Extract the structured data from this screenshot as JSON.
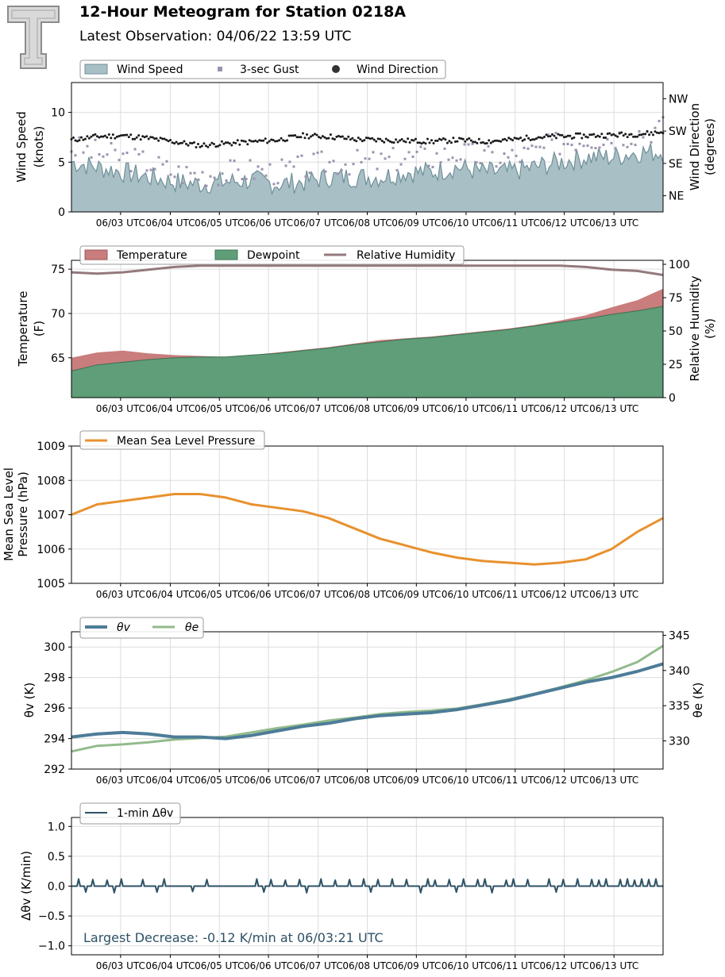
{
  "header": {
    "title": "12-Hour Meteogram for Station 0218A",
    "subtitle": "Latest Observation: 04/06/22 13:59 UTC"
  },
  "x_tick_labels": [
    "06/03 UTC",
    "06/04 UTC",
    "06/05 UTC",
    "06/06 UTC",
    "06/07 UTC",
    "06/08 UTC",
    "06/09 UTC",
    "06/10 UTC",
    "06/11 UTC",
    "06/12 UTC",
    "06/13 UTC"
  ],
  "colors": {
    "wind_fill": "#a9bfc6",
    "wind_line": "#6f8f98",
    "gust": "#9a93ae",
    "direction": "#1a1a1a",
    "temperature": "#c97d7d",
    "dewpoint": "#5f9e78",
    "rh": "#94797c",
    "pressure": "#e8912e",
    "theta_v": "#4d7c98",
    "theta_e": "#92bb8c",
    "dtheta": "#2d5266"
  },
  "chart_data": [
    {
      "type": "area",
      "legend": [
        "Wind Speed",
        "3-sec Gust",
        "Wind Direction"
      ],
      "ylabel_lines": [
        "Wind Speed",
        "(knots)"
      ],
      "ylim": [
        0,
        13
      ],
      "yticks": [
        0,
        5,
        10
      ],
      "y2label_lines": [
        "Wind Direction",
        "(degrees)"
      ],
      "y2ticks": [
        "NE",
        "SE",
        "SW",
        "NW"
      ],
      "y2_tick_degrees": [
        45,
        135,
        225,
        315
      ],
      "y2lim": [
        0,
        360
      ],
      "wind_speed_knots": [
        5.0,
        4.5,
        4.0,
        3.5,
        3.0,
        2.8,
        3.0,
        3.2,
        2.8,
        3.0,
        3.5,
        3.5,
        3.5,
        4.0,
        4.0,
        4.5,
        4.0,
        4.0,
        4.5,
        5.0,
        5.5,
        5.5,
        6.0,
        6.0
      ],
      "gust_knots": [
        6.5,
        6.0,
        5.5,
        5.0,
        4.0,
        3.8,
        4.0,
        4.2,
        4.0,
        4.5,
        5.0,
        5.0,
        5.0,
        5.5,
        5.5,
        6.0,
        5.5,
        5.5,
        6.0,
        7.0,
        7.5,
        7.5,
        8.0,
        8.5
      ],
      "direction_degrees": [
        200,
        210,
        212,
        205,
        195,
        185,
        190,
        195,
        200,
        212,
        210,
        202,
        200,
        198,
        196,
        200,
        196,
        200,
        208,
        210,
        212,
        214,
        216,
        222
      ]
    },
    {
      "type": "area",
      "legend": [
        "Temperature",
        "Dewpoint",
        "Relative Humidity"
      ],
      "ylabel_lines": [
        "Temperature",
        "(F)"
      ],
      "ylim": [
        60.5,
        76
      ],
      "yticks": [
        65,
        70,
        75
      ],
      "y2label_lines": [
        "Relative Humidity",
        "(%)"
      ],
      "y2lim": [
        0,
        103
      ],
      "y2ticks": [
        0,
        25,
        50,
        75,
        100
      ],
      "temperature_f": [
        65.0,
        65.6,
        65.8,
        65.5,
        65.3,
        65.2,
        65.1,
        65.3,
        65.6,
        65.9,
        66.2,
        66.6,
        67.0,
        67.2,
        67.4,
        67.7,
        68.0,
        68.3,
        68.7,
        69.2,
        69.8,
        70.7,
        71.5,
        72.8
      ],
      "dewpoint_f": [
        63.5,
        64.2,
        64.5,
        64.8,
        65.0,
        65.1,
        65.1,
        65.3,
        65.5,
        65.8,
        66.1,
        66.5,
        66.8,
        67.1,
        67.3,
        67.6,
        67.9,
        68.2,
        68.6,
        69.0,
        69.4,
        69.9,
        70.3,
        70.8
      ],
      "rh_percent": [
        94,
        93,
        94,
        96,
        98,
        99,
        99,
        99,
        99,
        99,
        99,
        99,
        99,
        99,
        99,
        99,
        99,
        99,
        99,
        99,
        98,
        96,
        95,
        92
      ]
    },
    {
      "type": "line",
      "legend": [
        "Mean Sea Level Pressure"
      ],
      "ylabel_lines": [
        "Mean Sea Level",
        "Pressure (hPa)"
      ],
      "ylim": [
        1005,
        1009
      ],
      "yticks": [
        1005,
        1006,
        1007,
        1008,
        1009
      ],
      "pressure_hpa": [
        1007.0,
        1007.3,
        1007.4,
        1007.5,
        1007.6,
        1007.6,
        1007.5,
        1007.3,
        1007.2,
        1007.1,
        1006.9,
        1006.6,
        1006.3,
        1006.1,
        1005.9,
        1005.75,
        1005.65,
        1005.6,
        1005.55,
        1005.6,
        1005.7,
        1006.0,
        1006.5,
        1006.9
      ]
    },
    {
      "type": "line",
      "legend": [
        "θv",
        "θe"
      ],
      "ylabel": "θv (K)",
      "ylim": [
        292,
        301
      ],
      "yticks": [
        292,
        294,
        296,
        298,
        300
      ],
      "y2label": "θe (K)",
      "y2lim": [
        326,
        345.5
      ],
      "y2ticks": [
        330,
        335,
        340,
        345
      ],
      "theta_v_k": [
        294.1,
        294.3,
        294.4,
        294.3,
        294.1,
        294.1,
        294.0,
        294.2,
        294.5,
        294.8,
        295.0,
        295.3,
        295.5,
        295.6,
        295.7,
        295.9,
        296.2,
        296.5,
        296.9,
        297.3,
        297.7,
        298.0,
        298.4,
        298.9
      ],
      "theta_e_k": [
        328.5,
        329.3,
        329.5,
        329.8,
        330.2,
        330.4,
        330.6,
        331.2,
        331.8,
        332.3,
        332.9,
        333.3,
        333.8,
        334.1,
        334.3,
        334.6,
        335.2,
        335.9,
        336.7,
        337.6,
        338.6,
        339.8,
        341.2,
        343.5
      ]
    },
    {
      "type": "line",
      "legend": [
        "1-min Δθv"
      ],
      "ylabel": "Δθv (K/min)",
      "ylim": [
        -1.15,
        1.15
      ],
      "yticks": [
        "−1.0",
        "−0.5",
        "0.0",
        "0.5",
        "1.0"
      ],
      "ytick_values": [
        -1.0,
        -0.5,
        0.0,
        0.5,
        1.0
      ],
      "annotation": "Largest Decrease: -0.12 K/min at 06/03:21 UTC",
      "dtheta_v_k_per_min": [
        0.0,
        0.12,
        -0.1,
        0.11,
        0.0,
        0.1,
        -0.11,
        0.12,
        0.0,
        0.0,
        0.11,
        0.0,
        -0.1,
        0.12,
        0.0,
        0.0,
        0.0,
        -0.09,
        0.0,
        0.11,
        0.0,
        0.0,
        0.0,
        0.0,
        0.0,
        0.0,
        0.12,
        -0.1,
        0.11,
        0.0,
        0.1,
        0.0,
        0.11,
        -0.11,
        0.0,
        0.12,
        0.0,
        0.1,
        0.0,
        0.11,
        0.0,
        0.12,
        -0.1,
        0.11,
        0.0,
        0.12,
        0.0,
        0.11,
        0.0,
        -0.11,
        0.12,
        0.1,
        0.0,
        0.11,
        -0.1,
        0.12,
        0.0,
        0.11,
        0.12,
        -0.11,
        0.0,
        0.1,
        0.12,
        0.0,
        0.11,
        0.0,
        0.0,
        0.12,
        -0.1,
        0.11,
        0.0,
        0.12,
        0.0,
        0.11,
        0.1,
        0.12,
        0.0,
        0.11,
        0.12,
        0.1,
        0.12,
        0.11,
        0.12,
        0.0
      ]
    }
  ]
}
